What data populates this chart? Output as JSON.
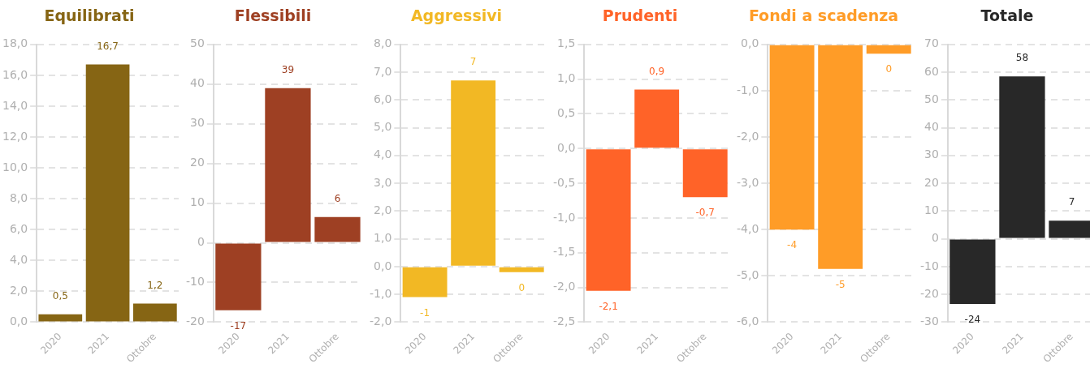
{
  "chart_data": [
    {
      "type": "bar",
      "title": "Equilibrati",
      "categories": [
        "2020",
        "2021",
        "Ottobre"
      ],
      "values": [
        0.5,
        16.7,
        1.2
      ],
      "color": "#866514",
      "value_labels": [
        "0,5",
        "16,7",
        "1,2"
      ],
      "ylim": [
        0,
        18
      ],
      "yticks": [
        {
          "value": 0,
          "label": "0,0"
        },
        {
          "value": 2,
          "label": "2,0"
        },
        {
          "value": 4,
          "label": "4,0"
        },
        {
          "value": 6,
          "label": "6,0"
        },
        {
          "value": 8,
          "label": "8,0"
        },
        {
          "value": 10,
          "label": "10,0"
        },
        {
          "value": 12,
          "label": "12,0"
        },
        {
          "value": 14,
          "label": "14,0"
        },
        {
          "value": 16,
          "label": "16,0"
        },
        {
          "value": 18,
          "label": "18,0"
        }
      ],
      "grid": "y"
    },
    {
      "type": "bar",
      "title": "Flessibili",
      "categories": [
        "2020",
        "2021",
        "Ottobre"
      ],
      "values": [
        -17,
        39,
        6.5
      ],
      "color": "#9e4023",
      "value_labels": [
        "-17",
        "39",
        "6"
      ],
      "ylim": [
        -20,
        50
      ],
      "yticks": [
        -20,
        -10,
        0,
        10,
        20,
        30,
        40,
        50
      ],
      "grid": "y"
    },
    {
      "type": "bar",
      "title": "Aggressivi",
      "categories": [
        "2020",
        "2021",
        "Ottobre"
      ],
      "values": [
        -1.1,
        6.7,
        -0.2
      ],
      "color": "#f2b824",
      "value_labels": [
        "-1",
        "7",
        "0"
      ],
      "ylim": [
        -2,
        8
      ],
      "yticks": [
        {
          "value": -2,
          "label": "-2,0"
        },
        {
          "value": -1,
          "label": "-1,0"
        },
        {
          "value": 0,
          "label": "0,0"
        },
        {
          "value": 1,
          "label": "1,0"
        },
        {
          "value": 2,
          "label": "2,0"
        },
        {
          "value": 3,
          "label": "3,0"
        },
        {
          "value": 4,
          "label": "4,0"
        },
        {
          "value": 5,
          "label": "5,0"
        },
        {
          "value": 6,
          "label": "6,0"
        },
        {
          "value": 7,
          "label": "7,0"
        },
        {
          "value": 8,
          "label": "8,0"
        }
      ],
      "grid": "y"
    },
    {
      "type": "bar",
      "title": "Prudenti",
      "categories": [
        "2020",
        "2021",
        "Ottobre"
      ],
      "values": [
        -2.05,
        0.85,
        -0.7
      ],
      "color": "#ff6328",
      "value_labels": [
        "-2,1",
        "0,9",
        "-0,7"
      ],
      "ylim": [
        -2.5,
        1.5
      ],
      "yticks": [
        {
          "value": -2.5,
          "label": "-2,5"
        },
        {
          "value": -2,
          "label": "-2,0"
        },
        {
          "value": -1.5,
          "label": "-1,5"
        },
        {
          "value": -1,
          "label": "-1,0"
        },
        {
          "value": -0.5,
          "label": "-0,5"
        },
        {
          "value": 0,
          "label": "0,0"
        },
        {
          "value": 0.5,
          "label": "0,5"
        },
        {
          "value": 1,
          "label": "1,0"
        },
        {
          "value": 1.5,
          "label": "1,5"
        }
      ],
      "grid": "y"
    },
    {
      "type": "bar",
      "title": "Fondi a scadenza",
      "categories": [
        "2020",
        "2021",
        "Ottobre"
      ],
      "values": [
        -4.0,
        -4.85,
        -0.2
      ],
      "color": "#ff9c27",
      "value_labels": [
        "-4",
        "-5",
        "0"
      ],
      "ylim": [
        -6,
        0
      ],
      "yticks": [
        {
          "value": -6,
          "label": "-6,0"
        },
        {
          "value": -5,
          "label": "-5,0"
        },
        {
          "value": -4,
          "label": "-4,0"
        },
        {
          "value": -3,
          "label": "-3,0"
        },
        {
          "value": -2,
          "label": "-2,0"
        },
        {
          "value": -1,
          "label": "-1,0"
        },
        {
          "value": 0,
          "label": "0,0"
        }
      ],
      "grid": "y"
    },
    {
      "type": "bar",
      "title": "Totale",
      "categories": [
        "2020",
        "2021",
        "Ottobre"
      ],
      "values": [
        -23.5,
        58.5,
        6.5
      ],
      "color": "#282828",
      "value_labels": [
        "-24",
        "58",
        "7"
      ],
      "ylim": [
        -30,
        70
      ],
      "yticks": [
        -30,
        -20,
        -10,
        0,
        10,
        20,
        30,
        40,
        50,
        60,
        70
      ],
      "grid": "y"
    }
  ]
}
